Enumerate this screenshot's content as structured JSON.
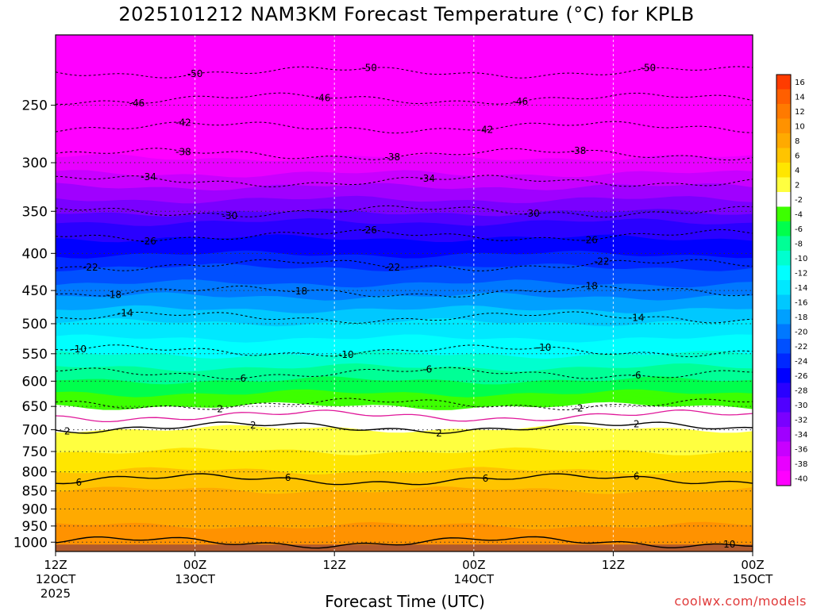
{
  "chart_data": {
    "type": "heatmap",
    "title": "2025101212 NAM3KM Forecast Temperature (°C) for KPLB",
    "xlabel": "Forecast Time (UTC)",
    "ylabel": "",
    "y_scale": "pressure (log, inverted)",
    "y_ticks": [
      250,
      300,
      350,
      400,
      450,
      500,
      550,
      600,
      650,
      700,
      750,
      800,
      850,
      900,
      950,
      1000
    ],
    "ylim": [
      1030,
      200
    ],
    "x_ticks": [
      {
        "hours": 0,
        "label": "12Z",
        "date": "12OCT",
        "year": "2025"
      },
      {
        "hours": 12,
        "label": "00Z",
        "date": "13OCT",
        "year": ""
      },
      {
        "hours": 24,
        "label": "12Z",
        "date": "",
        "year": ""
      },
      {
        "hours": 36,
        "label": "00Z",
        "date": "14OCT",
        "year": ""
      },
      {
        "hours": 48,
        "label": "12Z",
        "date": "",
        "year": ""
      },
      {
        "hours": 60,
        "label": "00Z",
        "date": "15OCT",
        "year": ""
      }
    ],
    "xlim": [
      0,
      60
    ],
    "temperature_profile": {
      "pressure_hPa": [
        200,
        230,
        260,
        290,
        330,
        370,
        400,
        450,
        500,
        550,
        600,
        650,
        670,
        700,
        750,
        800,
        850,
        900,
        950,
        1000
      ],
      "temp_C": [
        -52,
        -49,
        -45,
        -39,
        -33,
        -27,
        -24,
        -19,
        -14,
        -10,
        -6,
        -2,
        1,
        2,
        4,
        6,
        8,
        9,
        10,
        11
      ]
    },
    "contours": [
      {
        "level": "-50",
        "pressure": 225,
        "style": "dashed",
        "label_hours": [
          12,
          27,
          51
        ]
      },
      {
        "level": "-46",
        "pressure": 245,
        "style": "dashed",
        "label_hours": [
          7,
          23,
          40
        ]
      },
      {
        "level": "-42",
        "pressure": 268,
        "style": "dashed",
        "label_hours": [
          11,
          37
        ]
      },
      {
        "level": "-38",
        "pressure": 292,
        "style": "dashed",
        "label_hours": [
          11,
          29,
          45
        ]
      },
      {
        "level": "-34",
        "pressure": 318,
        "style": "dashed",
        "label_hours": [
          8,
          32
        ]
      },
      {
        "level": "-30",
        "pressure": 350,
        "style": "dashed",
        "label_hours": [
          15,
          41
        ]
      },
      {
        "level": "-26",
        "pressure": 378,
        "style": "dashed",
        "label_hours": [
          8,
          27,
          46
        ]
      },
      {
        "level": "-22",
        "pressure": 415,
        "style": "dashed",
        "label_hours": [
          3,
          29,
          47
        ]
      },
      {
        "level": "-18",
        "pressure": 452,
        "style": "dashed",
        "label_hours": [
          5,
          21,
          46
        ]
      },
      {
        "level": "-14",
        "pressure": 490,
        "style": "dashed",
        "label_hours": [
          6,
          50
        ]
      },
      {
        "level": "-10",
        "pressure": 545,
        "style": "dashed",
        "label_hours": [
          2,
          25,
          42
        ]
      },
      {
        "level": "-6",
        "pressure": 585,
        "style": "dashed",
        "label_hours": [
          16,
          32,
          50
        ]
      },
      {
        "level": "-2",
        "pressure": 645,
        "style": "dashed",
        "label_hours": [
          14,
          45
        ]
      },
      {
        "level": "0",
        "pressure": 670,
        "style": "magenta",
        "label_hours": []
      },
      {
        "level": "2",
        "pressure": 695,
        "style": "solid",
        "label_hours": [
          1,
          17,
          33,
          50
        ]
      },
      {
        "level": "6",
        "pressure": 820,
        "style": "solid",
        "label_hours": [
          2,
          20,
          37,
          50
        ]
      },
      {
        "level": "10",
        "pressure": 1000,
        "style": "solid",
        "label_hours": [
          58
        ]
      }
    ],
    "colorbar": {
      "labels": [
        "16",
        "14",
        "12",
        "10",
        "8",
        "6",
        "4",
        "2",
        "-2",
        "-4",
        "-6",
        "-8",
        "-10",
        "-12",
        "-14",
        "-16",
        "-18",
        "-20",
        "-22",
        "-24",
        "-26",
        "-28",
        "-30",
        "-32",
        "-34",
        "-36",
        "-38",
        "-40"
      ],
      "colors": [
        "#ff3c00",
        "#ff5f00",
        "#ff7a00",
        "#ff9200",
        "#ffaa00",
        "#ffc400",
        "#ffe600",
        "#ffff40",
        "#ffffff",
        "#3dff00",
        "#00ff4c",
        "#00ff96",
        "#00ffcf",
        "#00ffff",
        "#00e8ff",
        "#00c8ff",
        "#00a0ff",
        "#0078ff",
        "#0050ff",
        "#0028ff",
        "#0000ff",
        "#2a00ff",
        "#5000ff",
        "#7a00ff",
        "#a000ff",
        "#c800ff",
        "#e800ff",
        "#ff00ff"
      ]
    },
    "terrain_color": "#b05a2e",
    "grid": true,
    "legend": "right colorbar"
  },
  "credit": "coolwx.com/models"
}
